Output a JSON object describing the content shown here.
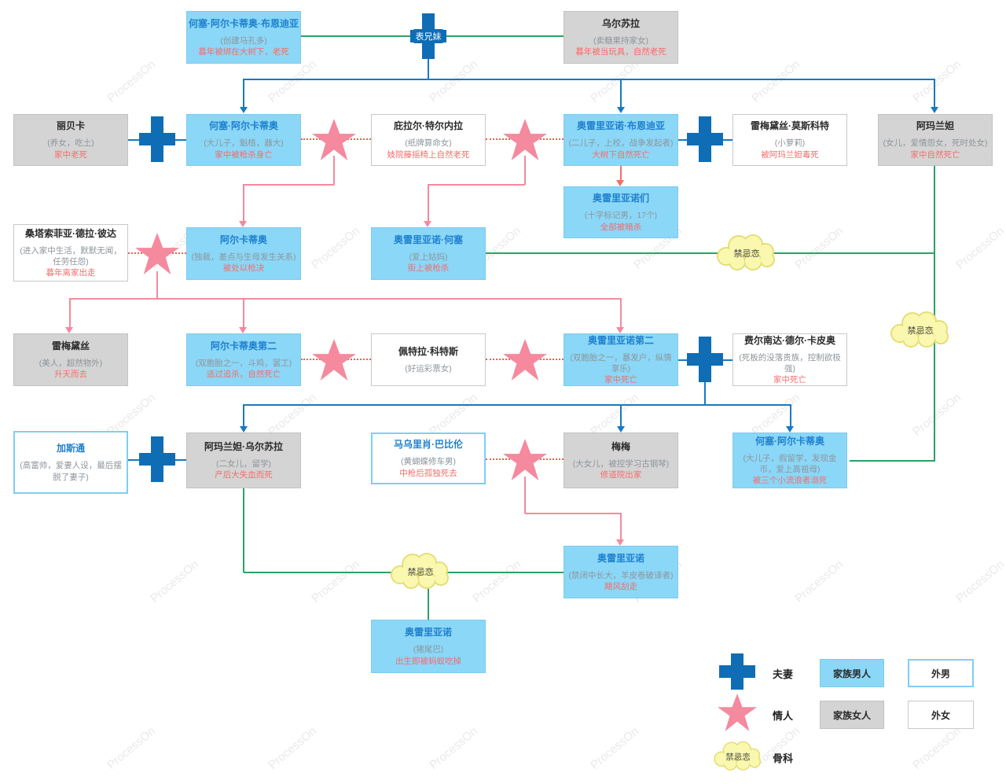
{
  "watermark": "ProcessOn",
  "symbols": {
    "cousins": "表兄妹",
    "incest1": "禁忌恋",
    "incest2": "禁忌恋",
    "incest3": "禁忌恋"
  },
  "legend": {
    "couple": "夫妻",
    "lover": "情人",
    "incest": "骨科",
    "incest_cloud": "禁忌恋",
    "family_male": "家族男人",
    "family_female": "家族女人",
    "outer_male": "外男",
    "outer_female": "外女"
  },
  "nodes": {
    "jab": {
      "title": "何塞·阿尔卡蒂奥·布恩迪亚",
      "desc": "(创建马孔多)",
      "fate": "暮年被绑在大树下，老死"
    },
    "ursula": {
      "title": "乌尔苏拉",
      "desc": "(卖糖果持家女)",
      "fate": "暮年被当玩具，自然老死"
    },
    "rebeca": {
      "title": "丽贝卡",
      "desc": "(养女，吃土)",
      "fate": "家中老死"
    },
    "jose_arcadio": {
      "title": "何塞·阿尔卡蒂奥",
      "desc": "(大儿子，魁梧，器大)",
      "fate": "家中被枪杀身亡"
    },
    "pilar": {
      "title": "庇拉尔·特尔内拉",
      "desc": "(纸牌算命女)",
      "fate": "妓院藤摇椅上自然老死"
    },
    "aureliano_b": {
      "title": "奥雷里亚诺·布恩迪亚",
      "desc": "(二儿子，上校，战争发起者)",
      "fate": "大树下自然死亡"
    },
    "remedios_m": {
      "title": "雷梅黛丝·莫斯科特",
      "desc": "(小萝莉)",
      "fate": "被阿玛兰妲毒死"
    },
    "amaranta": {
      "title": "阿玛兰妲",
      "desc": "(女儿，爱情怨女，死时处女)",
      "fate": "家中自然死亡"
    },
    "aurelianos": {
      "title": "奥雷里亚诺们",
      "desc": "(十字标记男，17个)",
      "fate": "全部被暗杀"
    },
    "santa_sofia": {
      "title": "桑塔索菲亚·德拉·彼达",
      "desc": "(进入家中生活，默默无闻，任劳任怨)",
      "fate": "暮年离家出走"
    },
    "arcadio": {
      "title": "阿尔卡蒂奥",
      "desc": "(独裁，差点与生母发生关系)",
      "fate": "被处以枪决"
    },
    "aureliano_jose": {
      "title": "奥雷里亚诺·何塞",
      "desc": "(爱上姑妈)",
      "fate": "街上被枪杀"
    },
    "remedios": {
      "title": "雷梅黛丝",
      "desc": "(美人，超然物外)",
      "fate": "升天而去"
    },
    "arcadio2": {
      "title": "阿尔卡蒂奥第二",
      "desc": "(双胞胎之一，斗鸡，罢工)",
      "fate": "逃过追杀，自然死亡"
    },
    "petra": {
      "title": "佩特拉·科特斯",
      "desc": "(好运彩票女)",
      "fate": ""
    },
    "aureliano2": {
      "title": "奥雷里亚诺第二",
      "desc": "(双胞胎之一，暴发户，纵情享乐)",
      "fate": "家中死亡"
    },
    "fernanda": {
      "title": "费尔南达·德尔·卡皮奥",
      "desc": "(死板的没落贵族，控制欲极强)",
      "fate": "家中死亡"
    },
    "gaston": {
      "title": "加斯通",
      "desc": "(高富帅，爱妻人设，最后摆脱了妻子)",
      "fate": ""
    },
    "amaranta_ursula": {
      "title": "阿玛兰妲·乌尔苏拉",
      "desc": "(二女儿，留学)",
      "fate": "产后大失血而死"
    },
    "mauricio": {
      "title": "马乌里肖·巴比伦",
      "desc": "(黄蝴蝶修车男)",
      "fate": "中枪后孤独死去"
    },
    "meme": {
      "title": "梅梅",
      "desc": "(大女儿，被控学习古钢琴)",
      "fate": "修道院出家"
    },
    "jose_arcadio2": {
      "title": "何塞·阿尔卡蒂奥",
      "desc": "(大儿子，假留学，发现金币，爱上高祖母)",
      "fate": "被三个小流浪者溺死"
    },
    "aureliano_last": {
      "title": "奥雷里亚诺",
      "desc": "(禁闭中长大，羊皮卷破译者)",
      "fate": "飓风刮走"
    },
    "aureliano_pig": {
      "title": "奥雷里亚诺",
      "desc": "(猪尾巴)",
      "fate": "出生即被蚂蚁吃掉"
    }
  },
  "colors": {
    "family_male_fill": "#8bd7f7",
    "family_female_fill": "#d4d4d4",
    "outer_male_border": "#7ecff4",
    "couple_plus": "#0f6db5",
    "lover_star": "#f5899e",
    "incest_cloud_fill": "#faf7af",
    "line_green": "#2ba263",
    "line_blue": "#1779c4",
    "line_pink": "#f5899e",
    "line_red_dotted": "#f25c50",
    "fate_text": "#f56c6c"
  }
}
